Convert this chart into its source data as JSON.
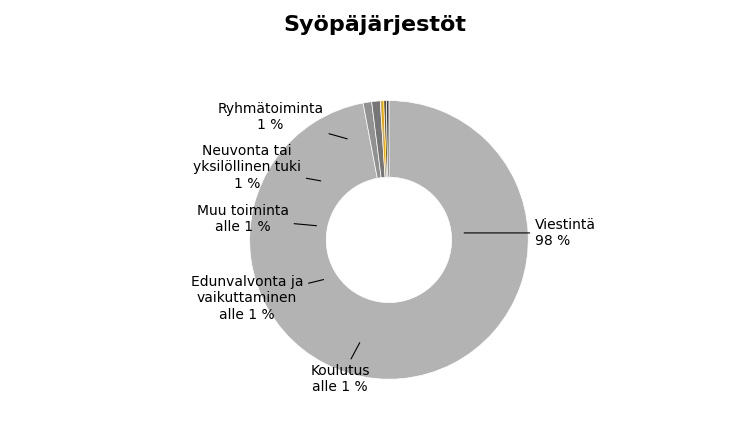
{
  "title": "Syöpäjärjestöt",
  "slices": [
    {
      "label": "Viestintä\n98 %",
      "value": 98,
      "color": "#b3b3b3",
      "label_pos": "right"
    },
    {
      "label": "Ryhmätoiminta\n1 %",
      "value": 1,
      "color": "#808080",
      "label_pos": "upper-left"
    },
    {
      "label": "Neuvonta tai\nyksilöllinen tuki\n1 %",
      "value": 1,
      "color": "#595959",
      "label_pos": "left"
    },
    {
      "label": "Muu toiminta\nalle 1 %",
      "value": 0.4,
      "color": "#f0a800",
      "label_pos": "left"
    },
    {
      "label": "Edunvalvonta ja\nvaikuttaminen\nalle 1 %",
      "value": 0.3,
      "color": "#404040",
      "label_pos": "lower-left"
    },
    {
      "label": "Koulutus\nalle 1 %",
      "value": 0.3,
      "color": "#303030",
      "label_pos": "lower"
    }
  ],
  "wedge_colors": [
    "#b3b3b3",
    "#919191",
    "#767676",
    "#f0a800",
    "#555555",
    "#444444"
  ],
  "title_fontsize": 16,
  "label_fontsize": 10,
  "background_color": "#ffffff",
  "donut_ratio": 0.55
}
